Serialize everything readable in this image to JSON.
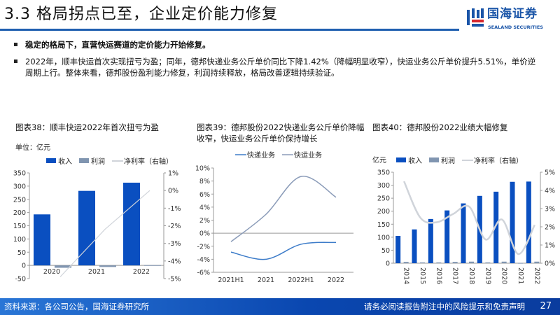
{
  "header": {
    "title": "3.3 格局拐点已至，企业定价能力修复"
  },
  "logo": {
    "cn": "国海证券",
    "en": "SEALAND SECURITIES",
    "colors": {
      "blue": "#1a55a8",
      "red": "#d7262e"
    }
  },
  "bullets": [
    "稳定的格局下，直营快运赛道的定价能力开始修复。",
    "2022年，顺丰快运首次实现扭亏为盈；同年，德邦快递业务公斤单价同比下降1.42%（降幅明显收窄），快运业务公斤单价提升5.51%，单价逆周期上行。整体来看，德邦股份盈利能力修复，利润持续释放，格局改善逻辑持续验证。"
  ],
  "footer": {
    "source": "资料来源：各公司公告，国海证券研究所",
    "disclaimer": "请务必阅读报告附注中的风险提示和免责声明",
    "page": "27"
  },
  "chart_data": [
    {
      "type": "bar",
      "title": "图表38：顺丰快运2022年首次扭亏为盈",
      "unit_label": "单位：亿元",
      "categories": [
        "2020",
        "2021",
        "2022"
      ],
      "series": [
        {
          "name": "收入",
          "kind": "bar",
          "axis": "left",
          "color": "#0a4fc0",
          "values": [
            193,
            282,
            313
          ]
        },
        {
          "name": "利润",
          "kind": "bar",
          "axis": "left",
          "color": "#8095b0",
          "values": [
            -9,
            -6,
            1
          ]
        },
        {
          "name": "净利率（右轴）",
          "kind": "line",
          "axis": "right",
          "color": "#d0d4da",
          "values": [
            -4.9,
            -2.2,
            0.0
          ]
        }
      ],
      "ylim": [
        -50,
        350
      ],
      "yticks": [
        "350",
        "300",
        "250",
        "200",
        "150",
        "100",
        "50",
        "0",
        "-50"
      ],
      "y2lim": [
        -5,
        1
      ],
      "y2ticks": [
        "1%",
        "0%",
        "-1%",
        "-2%",
        "-3%",
        "-4%",
        "-5%"
      ],
      "legend": "top-left",
      "grid": false
    },
    {
      "type": "line",
      "title": "图表39：德邦股份2022快递业务公斤单价降幅收窄，快运业务公斤单价保持增长",
      "categories": [
        "2021H1",
        "2021",
        "2022H1",
        "2022"
      ],
      "series": [
        {
          "name": "快递业务",
          "color": "#3d7cc9",
          "values": [
            -2.9,
            -4.0,
            -1.7,
            -1.42
          ]
        },
        {
          "name": "快运业务",
          "color": "#8a9bb8",
          "values": [
            -1.3,
            2.9,
            8.7,
            5.51
          ]
        }
      ],
      "ylim": [
        -6,
        10
      ],
      "yticks": [
        "10%",
        "8%",
        "6%",
        "4%",
        "2%",
        "0%",
        "-2%",
        "-4%",
        "-6%"
      ],
      "legend": "top",
      "grid": false
    },
    {
      "type": "bar",
      "title": "图表40：德邦股份2022业绩大幅修复",
      "unit_label": "亿元",
      "categories": [
        "2014",
        "2015",
        "2016",
        "2017",
        "2018",
        "2019",
        "2020",
        "2021",
        "2022"
      ],
      "series": [
        {
          "name": "收入",
          "kind": "bar",
          "axis": "left",
          "color": "#0a4fc0",
          "values": [
            105,
            130,
            170,
            203,
            230,
            259,
            275,
            313,
            314
          ]
        },
        {
          "name": "利润",
          "kind": "bar",
          "axis": "left",
          "color": "#8095b0",
          "values": [
            5,
            3,
            3,
            5,
            6,
            3,
            6,
            1,
            6
          ]
        },
        {
          "name": "净利率（右轴）",
          "kind": "line",
          "axis": "right",
          "color": "#d0d4da",
          "values": [
            4.5,
            2.5,
            2.25,
            2.7,
            3.1,
            1.3,
            2.4,
            0.5,
            2.1
          ]
        }
      ],
      "ylim": [
        0,
        350
      ],
      "yticks": [
        "350",
        "300",
        "250",
        "200",
        "150",
        "100",
        "50",
        "0"
      ],
      "y2lim": [
        0,
        5
      ],
      "y2ticks": [
        "5%",
        "4%",
        "3%",
        "2%",
        "1%",
        "0%"
      ],
      "legend": "top",
      "grid": false
    }
  ]
}
